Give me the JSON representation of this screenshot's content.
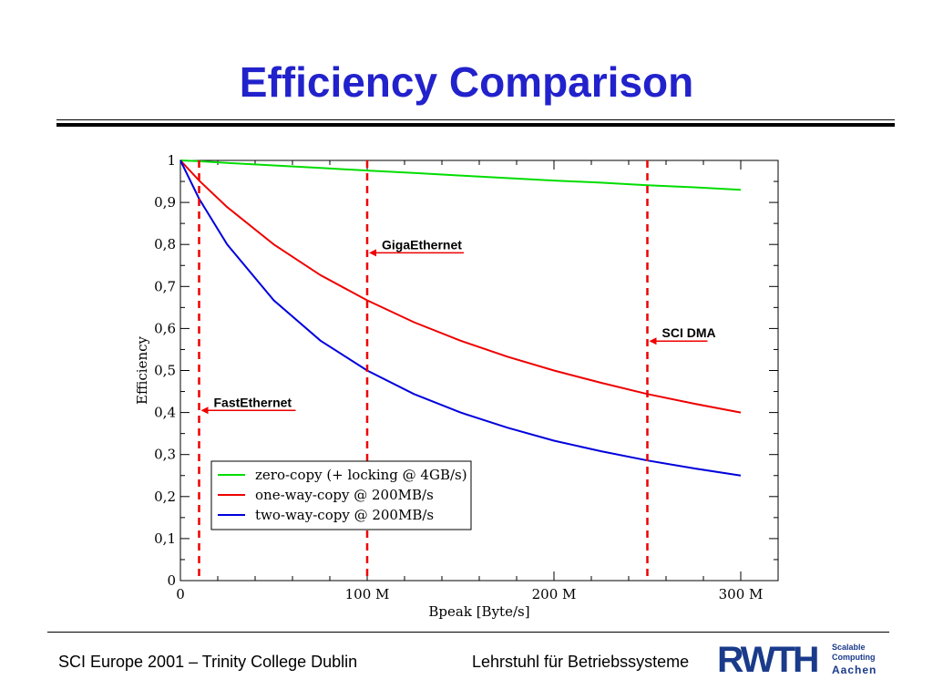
{
  "slide": {
    "title": "Efficiency Comparison",
    "footer_left": "SCI Europe 2001 – Trinity College Dublin",
    "footer_right": "Lehrstuhl für Betriebssysteme",
    "logo": {
      "word": "RWTH",
      "line1": "Scalable",
      "line2": "Computing",
      "line3": "Aachen",
      "color": "#1a3a8a"
    }
  },
  "chart_data": {
    "type": "line",
    "title": "",
    "xlabel": "Bpeak [Byte/s]",
    "ylabel": "Efficiency",
    "xlim": [
      0,
      320
    ],
    "ylim": [
      0,
      1
    ],
    "x_unit": "M Byte/s",
    "xticks": [
      0,
      100,
      200,
      300
    ],
    "xtick_labels": [
      "0",
      "100 M",
      "200 M",
      "300 M"
    ],
    "yticks": [
      0,
      0.1,
      0.2,
      0.3,
      0.4,
      0.5,
      0.6,
      0.7,
      0.8,
      0.9,
      1
    ],
    "ytick_labels": [
      "0",
      "0,1",
      "0,2",
      "0,3",
      "0,4",
      "0,5",
      "0,6",
      "0,7",
      "0,8",
      "0,9",
      "1"
    ],
    "grid": false,
    "legend_position": "bottom-left",
    "x": [
      0,
      10,
      25,
      50,
      75,
      100,
      125,
      150,
      175,
      200,
      225,
      250,
      275,
      300
    ],
    "series": [
      {
        "name": "zero-copy (+ locking @ 4GB/s)",
        "color": "#00dd00",
        "values": [
          1.0,
          0.998,
          0.994,
          0.988,
          0.982,
          0.976,
          0.97,
          0.964,
          0.958,
          0.952,
          0.947,
          0.941,
          0.936,
          0.93
        ]
      },
      {
        "name": "one-way-copy @ 200MB/s",
        "color": "#ee0000",
        "values": [
          1.0,
          0.952,
          0.889,
          0.8,
          0.727,
          0.667,
          0.615,
          0.571,
          0.533,
          0.5,
          0.471,
          0.444,
          0.421,
          0.4
        ]
      },
      {
        "name": "two-way-copy @ 200MB/s",
        "color": "#0000dd",
        "values": [
          1.0,
          0.909,
          0.8,
          0.667,
          0.571,
          0.5,
          0.444,
          0.4,
          0.364,
          0.333,
          0.308,
          0.286,
          0.267,
          0.25
        ]
      }
    ],
    "reference_lines": [
      {
        "x": 10,
        "label": "FastEthernet",
        "arrow_y": 0.405,
        "color": "#ee0000"
      },
      {
        "x": 100,
        "label": "GigaEthernet",
        "arrow_y": 0.78,
        "color": "#ee0000"
      },
      {
        "x": 250,
        "label": "SCI DMA",
        "arrow_y": 0.57,
        "color": "#ee0000"
      }
    ]
  }
}
